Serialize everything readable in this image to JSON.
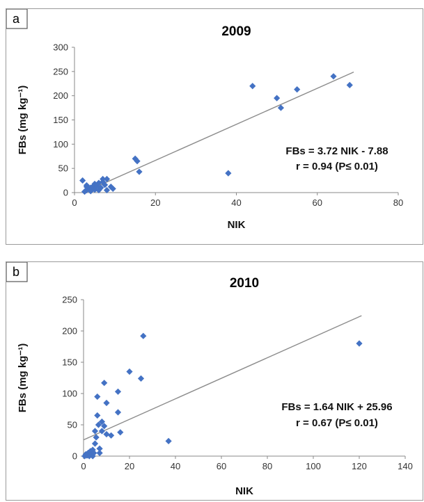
{
  "chart_data": [
    {
      "type": "scatter",
      "panel_label": "a",
      "title": "2009",
      "xlabel": "NIK",
      "ylabel": "FBs (mg kg⁻¹)",
      "xlim": [
        0,
        80
      ],
      "ylim": [
        0,
        300
      ],
      "xticks": [
        "0",
        "20",
        "40",
        "60",
        "80"
      ],
      "yticks": [
        "0",
        "50",
        "100",
        "150",
        "200",
        "250",
        "300"
      ],
      "grid": false,
      "marker_color": "#4472c4",
      "line_color": "#8c8c8c",
      "points": [
        [
          2,
          25
        ],
        [
          2.5,
          2
        ],
        [
          3,
          5
        ],
        [
          3,
          15
        ],
        [
          3.5,
          8
        ],
        [
          4,
          10
        ],
        [
          4,
          3
        ],
        [
          4.5,
          12
        ],
        [
          5,
          6
        ],
        [
          5,
          18
        ],
        [
          5.5,
          14
        ],
        [
          6,
          20
        ],
        [
          6,
          5
        ],
        [
          6.5,
          10
        ],
        [
          7,
          22
        ],
        [
          7,
          28
        ],
        [
          7.5,
          16
        ],
        [
          8,
          28
        ],
        [
          8,
          5
        ],
        [
          9,
          12
        ],
        [
          9.5,
          8
        ],
        [
          3,
          12
        ],
        [
          15,
          70
        ],
        [
          15.5,
          65
        ],
        [
          16,
          43
        ],
        [
          38,
          40
        ],
        [
          44,
          220
        ],
        [
          50,
          195
        ],
        [
          51,
          175
        ],
        [
          55,
          213
        ],
        [
          64,
          240
        ],
        [
          68,
          222
        ]
      ],
      "trendline": {
        "slope": 3.72,
        "intercept": -7.88,
        "x_range": [
          2,
          69
        ]
      },
      "equation": "FBs = 3.72 NIK - 7.88",
      "r_text": "r = 0.94 (P≤ 0.01)"
    },
    {
      "type": "scatter",
      "panel_label": "b",
      "title": "2010",
      "xlabel": "NIK",
      "ylabel": "FBs (mg kg⁻¹)",
      "xlim": [
        0,
        140
      ],
      "ylim": [
        0,
        250
      ],
      "xticks": [
        "0",
        "20",
        "40",
        "60",
        "80",
        "100",
        "120",
        "140"
      ],
      "yticks": [
        "0",
        "50",
        "100",
        "150",
        "200",
        "250"
      ],
      "grid": false,
      "marker_color": "#4472c4",
      "line_color": "#8c8c8c",
      "points": [
        [
          0.5,
          0
        ],
        [
          1,
          3
        ],
        [
          1.5,
          1
        ],
        [
          2,
          5
        ],
        [
          2.5,
          0
        ],
        [
          3,
          8
        ],
        [
          3.5,
          3
        ],
        [
          4,
          10
        ],
        [
          4,
          0
        ],
        [
          4.5,
          5
        ],
        [
          5,
          20
        ],
        [
          5,
          40
        ],
        [
          5.5,
          30
        ],
        [
          6,
          95
        ],
        [
          6,
          65
        ],
        [
          6.5,
          50
        ],
        [
          7,
          5
        ],
        [
          7,
          12
        ],
        [
          8,
          55
        ],
        [
          8,
          40
        ],
        [
          9,
          48
        ],
        [
          9,
          117
        ],
        [
          10,
          85
        ],
        [
          10,
          35
        ],
        [
          12,
          33
        ],
        [
          15,
          103
        ],
        [
          15,
          70
        ],
        [
          16,
          38
        ],
        [
          20,
          135
        ],
        [
          25,
          124
        ],
        [
          26,
          192
        ],
        [
          37,
          24
        ],
        [
          120,
          180
        ]
      ],
      "trendline": {
        "slope": 1.64,
        "intercept": 25.96,
        "x_range": [
          0,
          121
        ]
      },
      "equation": "FBs = 1.64 NIK + 25.96",
      "r_text": "r = 0.67 (P≤ 0.01)"
    }
  ]
}
